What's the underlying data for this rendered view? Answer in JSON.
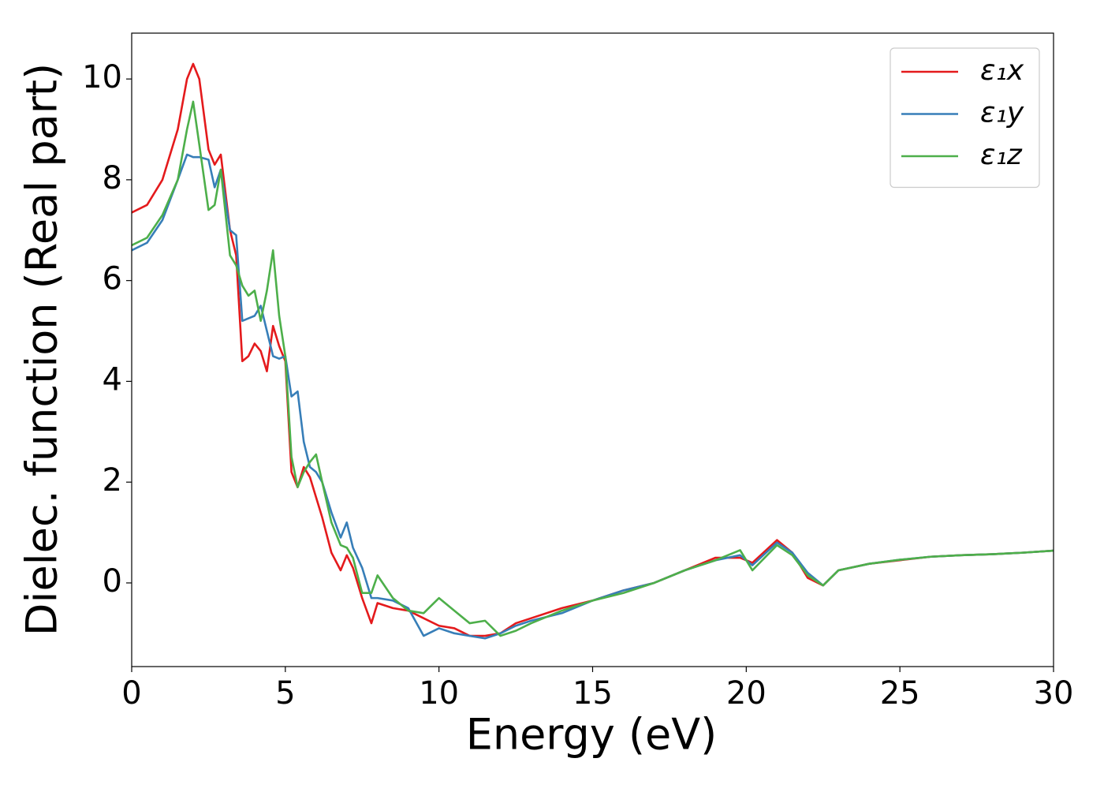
{
  "chart_data": {
    "type": "line",
    "xlabel": "Energy (eV)",
    "ylabel": "Dielec. function (Real part)",
    "x": [
      0,
      0.5,
      1,
      1.5,
      1.8,
      2,
      2.2,
      2.5,
      2.7,
      2.9,
      3.2,
      3.4,
      3.6,
      3.8,
      4,
      4.2,
      4.4,
      4.6,
      4.8,
      5,
      5.2,
      5.4,
      5.6,
      5.8,
      6,
      6.2,
      6.5,
      6.8,
      7,
      7.2,
      7.5,
      7.8,
      8,
      8.5,
      9,
      9.5,
      10,
      10.5,
      11,
      11.5,
      12,
      12.5,
      13,
      14,
      15,
      16,
      17,
      18,
      19,
      19.8,
      20.2,
      21,
      21.5,
      22,
      22.5,
      23,
      24,
      25,
      26,
      27,
      28,
      29,
      30
    ],
    "series": [
      {
        "name": "ε₁x",
        "color": "#e41a1c",
        "values": [
          7.35,
          7.5,
          8.0,
          9.0,
          10.0,
          10.3,
          10.0,
          8.6,
          8.3,
          8.5,
          7.0,
          6.5,
          4.4,
          4.5,
          4.75,
          4.6,
          4.2,
          5.1,
          4.7,
          4.4,
          2.2,
          1.9,
          2.3,
          2.1,
          1.7,
          1.3,
          0.6,
          0.25,
          0.55,
          0.3,
          -0.3,
          -0.8,
          -0.4,
          -0.5,
          -0.55,
          -0.7,
          -0.85,
          -0.9,
          -1.05,
          -1.05,
          -1.0,
          -0.8,
          -0.7,
          -0.5,
          -0.35,
          -0.15,
          0.0,
          0.25,
          0.5,
          0.5,
          0.4,
          0.85,
          0.6,
          0.1,
          -0.05,
          0.25,
          0.38,
          0.45,
          0.52,
          0.55,
          0.57,
          0.6,
          0.64
        ]
      },
      {
        "name": "ε₁y",
        "color": "#377eb8",
        "values": [
          6.6,
          6.75,
          7.2,
          8.0,
          8.5,
          8.45,
          8.45,
          8.4,
          7.85,
          8.2,
          7.0,
          6.9,
          5.2,
          5.25,
          5.3,
          5.5,
          5.0,
          4.5,
          4.45,
          4.5,
          3.7,
          3.8,
          2.8,
          2.3,
          2.2,
          2.0,
          1.4,
          0.9,
          1.2,
          0.7,
          0.3,
          -0.3,
          -0.3,
          -0.35,
          -0.5,
          -1.05,
          -0.9,
          -1.0,
          -1.05,
          -1.1,
          -1.0,
          -0.85,
          -0.75,
          -0.6,
          -0.35,
          -0.15,
          0.0,
          0.25,
          0.45,
          0.55,
          0.35,
          0.8,
          0.6,
          0.2,
          -0.05,
          0.25,
          0.38,
          0.46,
          0.52,
          0.55,
          0.57,
          0.6,
          0.64
        ]
      },
      {
        "name": "ε₁z",
        "color": "#4daf4a",
        "values": [
          6.7,
          6.85,
          7.3,
          8.0,
          9.0,
          9.55,
          8.7,
          7.4,
          7.5,
          8.2,
          6.5,
          6.3,
          5.9,
          5.7,
          5.8,
          5.2,
          5.8,
          6.6,
          5.3,
          4.5,
          2.5,
          1.9,
          2.2,
          2.4,
          2.55,
          2.0,
          1.2,
          0.75,
          0.7,
          0.5,
          -0.2,
          -0.2,
          0.15,
          -0.3,
          -0.55,
          -0.6,
          -0.3,
          -0.55,
          -0.8,
          -0.75,
          -1.05,
          -0.95,
          -0.8,
          -0.55,
          -0.35,
          -0.2,
          0.0,
          0.25,
          0.45,
          0.65,
          0.25,
          0.75,
          0.55,
          0.15,
          -0.05,
          0.25,
          0.38,
          0.46,
          0.52,
          0.55,
          0.57,
          0.6,
          0.64
        ]
      }
    ],
    "xlim": [
      0,
      30
    ],
    "xticks": [
      0,
      5,
      10,
      15,
      20,
      25,
      30
    ],
    "ylim": [
      -1.66,
      10.91
    ],
    "yticks": [
      0,
      2,
      4,
      6,
      8,
      10
    ],
    "grid": false,
    "legend": "upper right"
  }
}
